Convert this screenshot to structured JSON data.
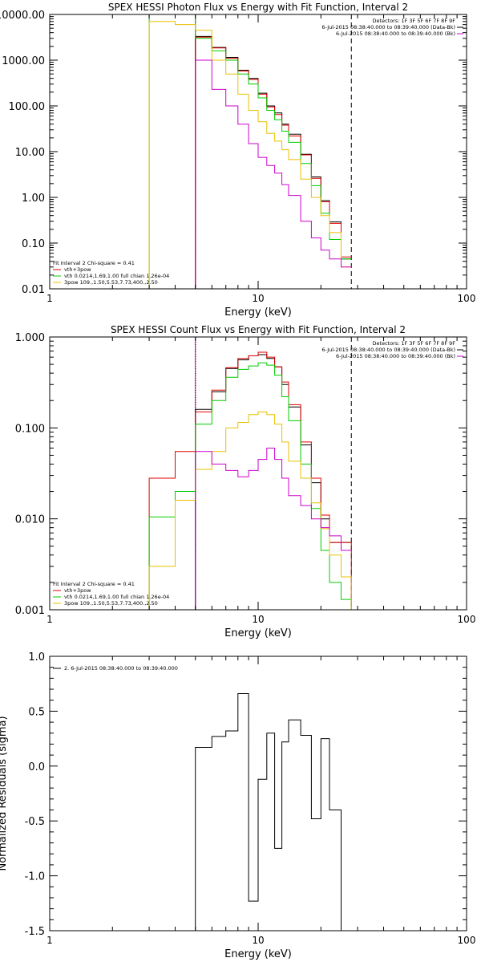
{
  "chart_data": [
    {
      "type": "line",
      "step": true,
      "title": "SPEX HESSI Photon Flux vs Energy with Fit Function, Interval 2",
      "xlabel": "Energy (keV)",
      "ylabel": "",
      "xscale": "log",
      "yscale": "log",
      "xlim": [
        1,
        100
      ],
      "ylim": [
        0.01,
        10000
      ],
      "xticks": [
        1,
        10,
        100
      ],
      "xtick_labels": [
        "1",
        "10",
        "100"
      ],
      "yticks": [
        0.01,
        0.1,
        1,
        10,
        100,
        1000,
        10000
      ],
      "ytick_labels": [
        "0.01",
        "0.10",
        "1.00",
        "10.00",
        "100.00",
        "1000.00",
        "10000.00"
      ],
      "vlines": [
        {
          "x": 5.0,
          "color": "#cc00cc",
          "style": "solid"
        },
        {
          "x": 5.0,
          "color": "#000000",
          "style": "dotted"
        },
        {
          "x": 28.0,
          "color": "#000000",
          "style": "dashed"
        }
      ],
      "header_right": [
        {
          "text": "Detectors: 1F 3F 5F 6F 7F 8F 9F",
          "color": "#000000"
        },
        {
          "text": "6-Jul-2015 08:38:40.000 to 08:39:40.000 (Data-Bk)",
          "color": "#000000"
        },
        {
          "text": "6-Jul-2015 08:38:40.000 to 08:39:40.000 (Bk)",
          "color": "#cc00cc"
        }
      ],
      "legend_left": [
        {
          "text": "Fit Interval 2   Chi-square = 0.41",
          "color": "#000000"
        },
        {
          "text": "vth+3pow",
          "color": "#e00000"
        },
        {
          "text": "vth 0.0214,1.69,1.00  full chian 1.26e-04",
          "color": "#00cc00"
        },
        {
          "text": "3pow 109.,1.50,5.53,7.73,400.,2.50",
          "color": "#e8c000"
        }
      ],
      "edges": [
        3.0,
        4.0,
        5.0,
        6.0,
        7.0,
        8.0,
        9.0,
        10.0,
        11.0,
        12.0,
        13.0,
        14.0,
        16.0,
        18.0,
        20.0,
        22.0,
        25.0,
        28.0
      ],
      "series": [
        {
          "name": "data",
          "color": "#000000",
          "values": [
            null,
            null,
            3300,
            1900,
            1150,
            600,
            400,
            190,
            100,
            70,
            40,
            24,
            8.8,
            2.8,
            0.85,
            0.29,
            0.045
          ]
        },
        {
          "name": "vth+3pow",
          "color": "#e00000",
          "values": [
            null,
            null,
            3200,
            1850,
            1100,
            580,
            380,
            180,
            95,
            65,
            38,
            22,
            8.5,
            2.6,
            0.8,
            0.27,
            0.05,
            0.018
          ]
        },
        {
          "name": "vth",
          "color": "#00cc00",
          "values": [
            10000,
            10000,
            3000,
            1600,
            1000,
            500,
            300,
            150,
            80,
            50,
            28,
            16,
            5.5,
            1.8,
            0.45,
            0.12,
            0.045,
            0.01
          ]
        },
        {
          "name": "3pow",
          "color": "#e8c000",
          "values": [
            7000,
            6000,
            4500,
            1000,
            500,
            180,
            80,
            45,
            25,
            17,
            11,
            6.7,
            2.5,
            1.0,
            0.4,
            0.17,
            0.03,
            0.01
          ]
        },
        {
          "name": "Bk",
          "color": "#cc00cc",
          "values": [
            null,
            null,
            1000,
            230,
            100,
            40,
            15,
            7.5,
            5.0,
            3.4,
            1.9,
            1.1,
            0.3,
            0.13,
            0.07,
            0.045,
            0.03
          ]
        }
      ]
    },
    {
      "type": "line",
      "step": true,
      "title": "SPEX HESSI Count Flux vs Energy with Fit Function, Interval 2",
      "xlabel": "Energy (keV)",
      "ylabel": "",
      "xscale": "log",
      "yscale": "log",
      "xlim": [
        1,
        100
      ],
      "ylim": [
        0.001,
        1.0
      ],
      "xticks": [
        1,
        10,
        100
      ],
      "xtick_labels": [
        "1",
        "10",
        "100"
      ],
      "yticks": [
        0.001,
        0.01,
        0.1,
        1.0
      ],
      "ytick_labels": [
        "0.001",
        "0.010",
        "0.100",
        "1.000"
      ],
      "vlines": [
        {
          "x": 5.0,
          "color": "#cc00cc",
          "style": "solid"
        },
        {
          "x": 5.0,
          "color": "#000000",
          "style": "dotted"
        },
        {
          "x": 28.0,
          "color": "#000000",
          "style": "dashed"
        }
      ],
      "header_right": [
        {
          "text": "Detectors: 1F 3F 5F 6F 7F 8F 9F",
          "color": "#000000"
        },
        {
          "text": "6-Jul-2015 08:38:40.000 to 08:39:40.000 (Data-Bk)",
          "color": "#000000"
        },
        {
          "text": "6-Jul-2015 08:38:40.000 to 08:39:40.000 (Bk)",
          "color": "#cc00cc"
        }
      ],
      "legend_left": [
        {
          "text": "Fit Interval 2   Chi-square = 0.41",
          "color": "#000000"
        },
        {
          "text": "vth+3pow",
          "color": "#e00000"
        },
        {
          "text": "vth 0.0214,1.69,1.00  full chian 1.26e-04",
          "color": "#00cc00"
        },
        {
          "text": "3pow 109.,1.50,5.53,7.73,400.,2.50",
          "color": "#e8c000"
        }
      ],
      "edges": [
        3.0,
        4.0,
        5.0,
        6.0,
        7.0,
        8.0,
        9.0,
        10.0,
        11.0,
        12.0,
        13.0,
        14.0,
        16.0,
        18.0,
        20.0,
        22.0,
        25.0,
        28.0,
        30.0
      ],
      "series": [
        {
          "name": "data",
          "color": "#000000",
          "values": [
            null,
            null,
            0.16,
            0.25,
            0.45,
            0.56,
            0.62,
            0.64,
            0.58,
            0.47,
            0.3,
            0.17,
            0.065,
            0.025,
            0.01,
            0.0055,
            0.0055
          ]
        },
        {
          "name": "vth+3pow",
          "color": "#e00000",
          "values": [
            0.028,
            0.055,
            0.15,
            0.26,
            0.46,
            0.58,
            0.62,
            0.68,
            0.6,
            0.47,
            0.32,
            0.18,
            0.07,
            0.028,
            0.011,
            0.0055,
            0.0055,
            0.001
          ]
        },
        {
          "name": "vth",
          "color": "#00cc00",
          "values": [
            0.0105,
            0.02,
            0.11,
            0.2,
            0.36,
            0.44,
            0.48,
            0.52,
            0.49,
            0.38,
            0.22,
            0.12,
            0.04,
            0.013,
            0.0045,
            0.002,
            0.0013,
            0.001
          ]
        },
        {
          "name": "3pow",
          "color": "#e8c000",
          "values": [
            0.003,
            0.016,
            0.035,
            0.055,
            0.1,
            0.115,
            0.14,
            0.15,
            0.14,
            0.11,
            0.07,
            0.043,
            0.028,
            0.015,
            0.0078,
            0.004,
            0.0023,
            0.001
          ]
        },
        {
          "name": "Bk",
          "color": "#cc00cc",
          "values": [
            null,
            null,
            0.055,
            0.04,
            0.034,
            0.029,
            0.034,
            0.045,
            0.06,
            0.045,
            0.028,
            0.018,
            0.014,
            0.01,
            0.008,
            0.0065,
            0.0045
          ]
        }
      ]
    },
    {
      "type": "line",
      "step": true,
      "title": "",
      "xlabel": "Energy (keV)",
      "ylabel": "Normalized Residuals (sigma)",
      "xscale": "log",
      "yscale": "linear",
      "xlim": [
        1,
        100
      ],
      "ylim": [
        -1.5,
        1.0
      ],
      "xticks": [
        1,
        10,
        100
      ],
      "xtick_labels": [
        "1",
        "10",
        "100"
      ],
      "yticks": [
        -1.5,
        -1.0,
        -0.5,
        0.0,
        0.5,
        1.0
      ],
      "ytick_labels": [
        "-1.5",
        "-1.0",
        "-0.5",
        "0.0",
        "0.5",
        "1.0"
      ],
      "legend_left": [
        {
          "text": "2.  6-Jul-2015 08:38:40.000 to 08:39:40.000",
          "color": "#000000"
        }
      ],
      "edges": [
        5.0,
        6.0,
        7.0,
        8.0,
        9.0,
        10.0,
        11.0,
        12.0,
        13.0,
        14.0,
        16.0,
        18.0,
        20.0,
        22.0,
        25.0,
        28.0
      ],
      "series": [
        {
          "name": "residuals",
          "color": "#000000",
          "values": [
            0.17,
            0.27,
            0.32,
            0.66,
            -1.23,
            -0.12,
            0.3,
            -0.75,
            0.22,
            0.42,
            0.28,
            -0.48,
            0.25,
            -0.4,
            -1.5
          ]
        }
      ]
    }
  ]
}
